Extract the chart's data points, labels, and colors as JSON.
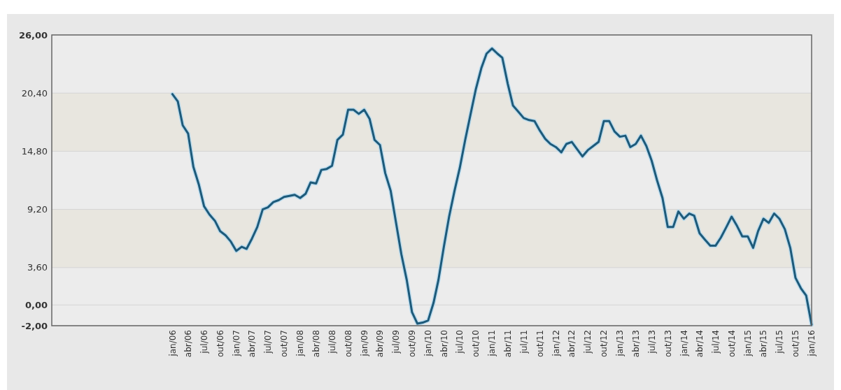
{
  "chart_data": {
    "type": "line",
    "x": [
      "2006-01",
      "2006-02",
      "2006-03",
      "2006-04",
      "2006-05",
      "2006-06",
      "2006-07",
      "2006-08",
      "2006-09",
      "2006-10",
      "2006-11",
      "2006-12",
      "2007-01",
      "2007-02",
      "2007-03",
      "2007-04",
      "2007-05",
      "2007-06",
      "2007-07",
      "2007-08",
      "2007-09",
      "2007-10",
      "2007-11",
      "2007-12",
      "2008-01",
      "2008-02",
      "2008-03",
      "2008-04",
      "2008-05",
      "2008-06",
      "2008-07",
      "2008-08",
      "2008-09",
      "2008-10",
      "2008-11",
      "2008-12",
      "2009-01",
      "2009-02",
      "2009-03",
      "2009-04",
      "2009-05",
      "2009-06",
      "2009-07",
      "2009-08",
      "2009-09",
      "2009-10",
      "2009-11",
      "2009-12",
      "2010-01",
      "2010-02",
      "2010-03",
      "2010-04",
      "2010-05",
      "2010-06",
      "2010-07",
      "2010-08",
      "2010-09",
      "2010-10",
      "2010-11",
      "2010-12",
      "2011-01",
      "2011-02",
      "2011-03",
      "2011-04",
      "2011-05",
      "2011-06",
      "2011-07",
      "2011-08",
      "2011-09",
      "2011-10",
      "2011-11",
      "2011-12",
      "2012-01",
      "2012-02",
      "2012-03",
      "2012-04",
      "2012-05",
      "2012-06",
      "2012-07",
      "2012-08",
      "2012-09",
      "2012-10",
      "2012-11",
      "2012-12",
      "2013-01",
      "2013-02",
      "2013-03",
      "2013-04",
      "2013-05",
      "2013-06",
      "2013-07",
      "2013-08",
      "2013-09",
      "2013-10",
      "2013-11",
      "2013-12",
      "2014-01",
      "2014-02",
      "2014-03",
      "2014-04",
      "2014-05",
      "2014-06",
      "2014-07",
      "2014-08",
      "2014-09",
      "2014-10",
      "2014-11",
      "2014-12",
      "2015-01",
      "2015-02",
      "2015-03",
      "2015-04",
      "2015-05",
      "2015-06",
      "2015-07",
      "2015-08",
      "2015-09",
      "2015-10",
      "2015-11",
      "2015-12",
      "2016-01"
    ],
    "series": [
      {
        "color": "#1d5a7a",
        "values": [
          20.3,
          19.6,
          17.3,
          16.5,
          13.3,
          11.6,
          9.5,
          8.7,
          8.1,
          7.1,
          6.7,
          6.1,
          5.2,
          5.6,
          5.4,
          6.4,
          7.5,
          9.2,
          9.4,
          9.9,
          10.1,
          10.4,
          10.5,
          10.6,
          10.3,
          10.7,
          11.8,
          11.7,
          13.0,
          13.1,
          13.4,
          15.9,
          16.4,
          18.8,
          18.8,
          18.4,
          18.8,
          17.9,
          15.9,
          15.4,
          12.7,
          11.0,
          8.0,
          4.9,
          2.4,
          -0.7,
          -1.8,
          -1.7,
          -1.5,
          0.2,
          2.4,
          5.6,
          8.5,
          11.0,
          13.2,
          15.9,
          18.4,
          20.8,
          22.8,
          24.2,
          24.7,
          24.2,
          23.8,
          21.3,
          19.2,
          18.6,
          18.0,
          17.8,
          17.7,
          16.8,
          16.0,
          15.5,
          15.2,
          14.7,
          15.5,
          15.7,
          15.0,
          14.3,
          14.9,
          15.3,
          15.7,
          17.7,
          17.7,
          16.7,
          16.2,
          16.3,
          15.2,
          15.5,
          16.3,
          15.3,
          13.9,
          12.0,
          10.3,
          7.5,
          7.5,
          9.0,
          8.3,
          8.8,
          8.6,
          6.9,
          6.3,
          5.7,
          5.7,
          6.5,
          7.5,
          8.5,
          7.6,
          6.6,
          6.6,
          5.5,
          7.1,
          8.3,
          7.9,
          8.8,
          8.3,
          7.3,
          5.5,
          2.6,
          1.6,
          0.9,
          -1.9
        ]
      }
    ],
    "xlim": [
      "2004-02-12",
      "2016-01"
    ],
    "xticks": [
      {
        "value": "2006-01",
        "label": "jan/06"
      },
      {
        "value": "2006-04",
        "label": "abr/06"
      },
      {
        "value": "2006-07",
        "label": "jul/06"
      },
      {
        "value": "2006-10",
        "label": "out/06"
      },
      {
        "value": "2007-01",
        "label": "jan/07"
      },
      {
        "value": "2007-04",
        "label": "abr/07"
      },
      {
        "value": "2007-07",
        "label": "jul/07"
      },
      {
        "value": "2007-10",
        "label": "out/07"
      },
      {
        "value": "2008-01",
        "label": "jan/08"
      },
      {
        "value": "2008-04",
        "label": "abr/08"
      },
      {
        "value": "2008-07",
        "label": "jul/08"
      },
      {
        "value": "2008-10",
        "label": "out/08"
      },
      {
        "value": "2009-01",
        "label": "jan/09"
      },
      {
        "value": "2009-04",
        "label": "abr/09"
      },
      {
        "value": "2009-07",
        "label": "jul/09"
      },
      {
        "value": "2009-10",
        "label": "out/09"
      },
      {
        "value": "2010-01",
        "label": "jan/10"
      },
      {
        "value": "2010-04",
        "label": "abr/10"
      },
      {
        "value": "2010-07",
        "label": "jul/10"
      },
      {
        "value": "2010-10",
        "label": "out/10"
      },
      {
        "value": "2011-01",
        "label": "jan/11"
      },
      {
        "value": "2011-04",
        "label": "abr/11"
      },
      {
        "value": "2011-07",
        "label": "jul/11"
      },
      {
        "value": "2011-10",
        "label": "out/11"
      },
      {
        "value": "2012-01",
        "label": "jan/12"
      },
      {
        "value": "2012-04",
        "label": "abr/12"
      },
      {
        "value": "2012-07",
        "label": "jul/12"
      },
      {
        "value": "2012-10",
        "label": "out/12"
      },
      {
        "value": "2013-01",
        "label": "jan/13"
      },
      {
        "value": "2013-04",
        "label": "abr/13"
      },
      {
        "value": "2013-07",
        "label": "jul/13"
      },
      {
        "value": "2013-10",
        "label": "out/13"
      },
      {
        "value": "2014-01",
        "label": "jan/14"
      },
      {
        "value": "2014-04",
        "label": "abr/14"
      },
      {
        "value": "2014-07",
        "label": "jul/14"
      },
      {
        "value": "2014-10",
        "label": "out/14"
      },
      {
        "value": "2015-01",
        "label": "jan/15"
      },
      {
        "value": "2015-04",
        "label": "abr/15"
      },
      {
        "value": "2015-07",
        "label": "jul/15"
      },
      {
        "value": "2015-10",
        "label": "out/15"
      },
      {
        "value": "2016-01",
        "label": "jan/16"
      }
    ],
    "ylim": [
      -2,
      26
    ],
    "yticks": [
      {
        "value": -2,
        "label": "-2,00"
      },
      {
        "value": 0,
        "label": "0,00"
      },
      {
        "value": 3.6,
        "label": "3,60"
      },
      {
        "value": 9.2,
        "label": "9,20"
      },
      {
        "value": 14.8,
        "label": "14,80"
      },
      {
        "value": 20.4,
        "label": "20,40"
      },
      {
        "value": 26,
        "label": "26,00"
      }
    ],
    "bands": [
      {
        "axis": "y",
        "from": 3.6,
        "to": 9.2,
        "color": "#e8e6df"
      },
      {
        "axis": "y",
        "from": 14.8,
        "to": 20.4,
        "color": "#e8e6df"
      }
    ],
    "grid": "y",
    "marker": "none",
    "line_style": "solid"
  }
}
